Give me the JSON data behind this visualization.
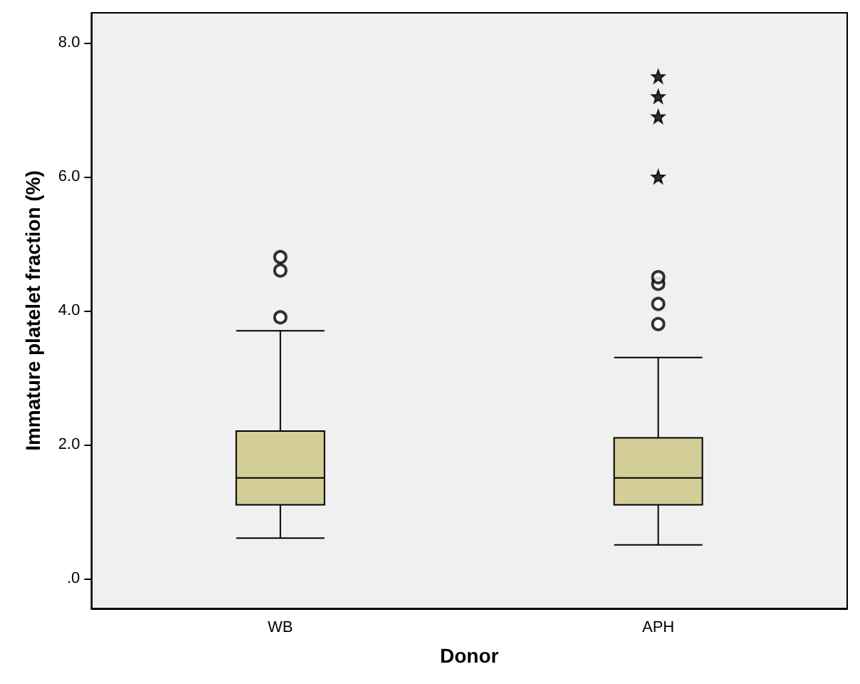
{
  "chart_data": {
    "type": "box",
    "xlabel": "Donor",
    "ylabel": "Immature platelet fraction (%)",
    "categories": [
      "WB",
      "APH"
    ],
    "series": [
      {
        "color": "#d3ce97",
        "marker": "circle",
        "boxes": [
          {
            "low": 0.6,
            "q1": 1.1,
            "median": 1.5,
            "q3": 2.2,
            "high": 3.7,
            "outliers": [
              3.9,
              4.6,
              4.8
            ]
          },
          {
            "low": 0.5,
            "q1": 1.1,
            "median": 1.5,
            "q3": 2.1,
            "high": 3.3,
            "outliers": [
              3.8,
              4.1,
              4.4,
              4.5
            ]
          }
        ]
      },
      {
        "type": "scatter",
        "color": "#000000",
        "marker": "star",
        "x": [
          "APH",
          "APH",
          "APH",
          "APH"
        ],
        "values": [
          6.0,
          6.9,
          7.2,
          7.5
        ]
      }
    ],
    "ylim": [
      -0.45,
      8.45
    ],
    "yticks": [
      {
        "value": 0,
        "label": ".0"
      },
      {
        "value": 2,
        "label": "2.0"
      },
      {
        "value": 4,
        "label": "4.0"
      },
      {
        "value": 6,
        "label": "6.0"
      },
      {
        "value": 8,
        "label": "8.0"
      }
    ],
    "grid": false
  }
}
